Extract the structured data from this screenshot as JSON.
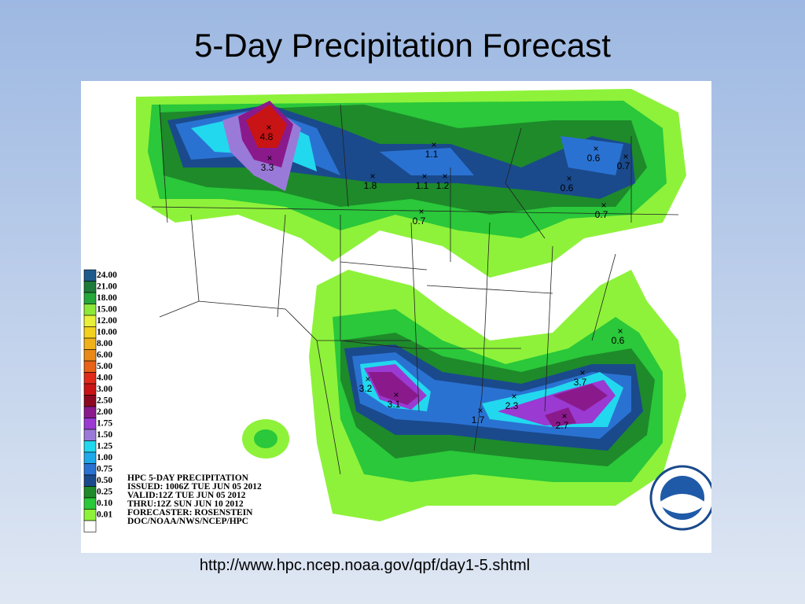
{
  "title": "5-Day Precipitation Forecast",
  "url": "http://www.hpc.ncep.noaa.gov/qpf/day1-5.shtml",
  "map": {
    "header": [
      "HPC 5-DAY PRECIPITATION",
      "ISSUED: 1006Z TUE JUN 05 2012",
      "VALID:12Z TUE JUN 05 2012",
      "THRU:12Z SUN JUN 10 2012",
      "FORECASTER: ROSENSTEIN",
      "DOC/NOAA/NWS/NCEP/HPC"
    ],
    "legend": [
      {
        "label": "24.00",
        "color": "#1f5a8c"
      },
      {
        "label": "21.00",
        "color": "#1e7b3a"
      },
      {
        "label": "18.00",
        "color": "#26a83a"
      },
      {
        "label": "15.00",
        "color": "#8ee83a"
      },
      {
        "label": "12.00",
        "color": "#e8f03a"
      },
      {
        "label": "10.00",
        "color": "#f2d21e"
      },
      {
        "label": "8.00",
        "color": "#f0b21a"
      },
      {
        "label": "6.00",
        "color": "#e88a1a"
      },
      {
        "label": "5.00",
        "color": "#e8621a"
      },
      {
        "label": "4.00",
        "color": "#e02a1a"
      },
      {
        "label": "3.00",
        "color": "#c81414"
      },
      {
        "label": "2.50",
        "color": "#8c0a20"
      },
      {
        "label": "2.00",
        "color": "#8a1a8c"
      },
      {
        "label": "1.75",
        "color": "#9a3ad2"
      },
      {
        "label": "1.50",
        "color": "#9a7ad8"
      },
      {
        "label": "1.25",
        "color": "#22d8ee"
      },
      {
        "label": "1.00",
        "color": "#1eaaea"
      },
      {
        "label": "0.75",
        "color": "#2a72d2"
      },
      {
        "label": "0.50",
        "color": "#1a4a8c"
      },
      {
        "label": "0.25",
        "color": "#1e8a2a"
      },
      {
        "label": "0.10",
        "color": "#2ac83a"
      },
      {
        "label": "0.01",
        "color": "#8ef23a"
      },
      {
        "label": "",
        "color": "#ffffff"
      }
    ],
    "points": [
      "4.8",
      "3.3",
      "1.8",
      "1.1",
      "1.1",
      "1.2",
      "0.7",
      "0.6",
      "0.7",
      "0.6",
      "0.7",
      "0.6",
      "3.2",
      "3.1",
      "3.7",
      "2.7",
      "2.3",
      "1.7"
    ]
  }
}
